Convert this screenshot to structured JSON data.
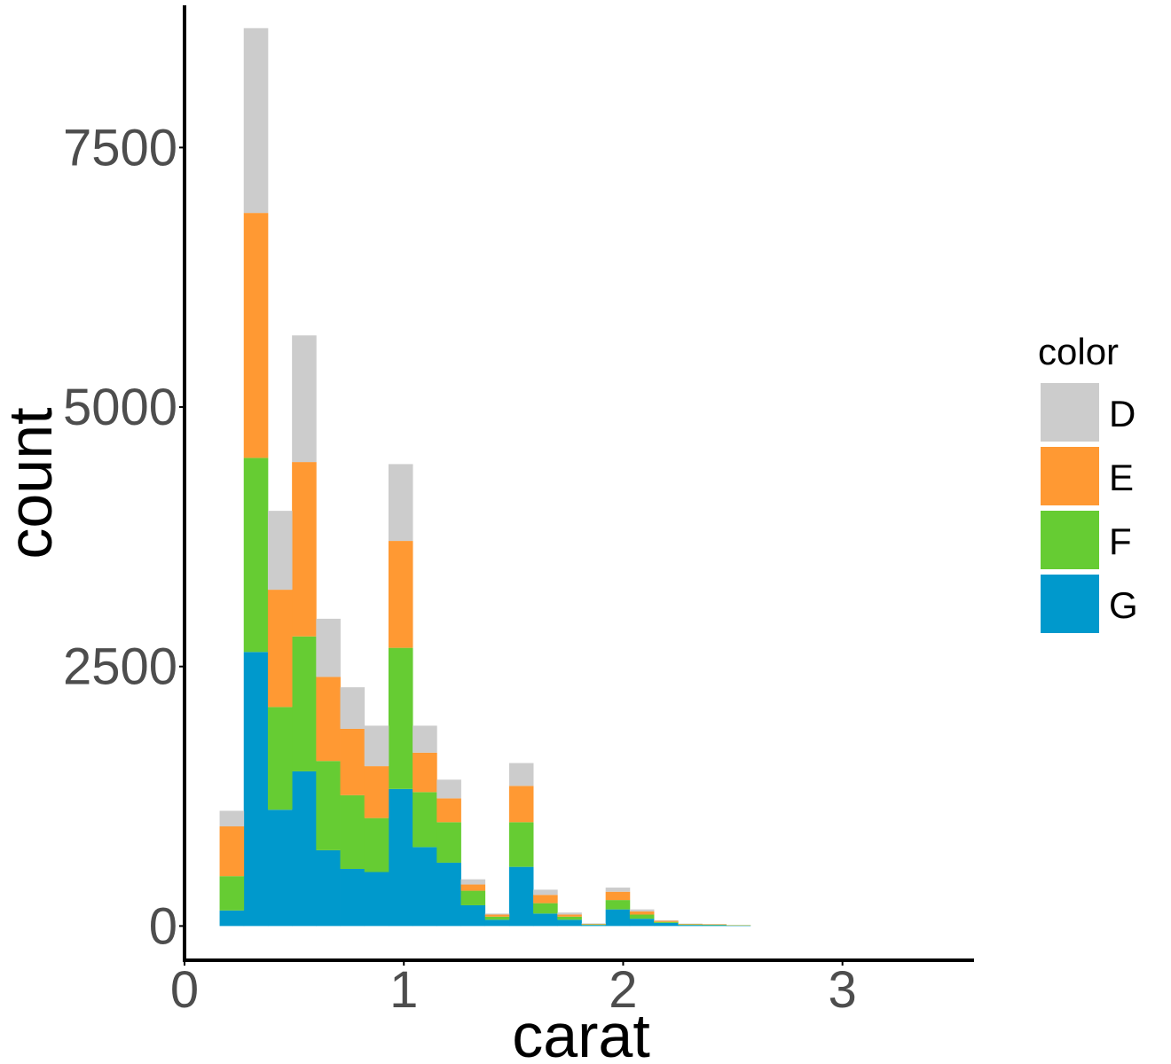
{
  "chart_data": {
    "type": "bar",
    "stacked": true,
    "histogram": true,
    "xlabel": "carat",
    "ylabel": "count",
    "xlim": [
      0,
      3.6
    ],
    "ylim": [
      -330,
      8870
    ],
    "x_ticks": [
      0,
      1,
      2,
      3
    ],
    "x_tick_labels": [
      "0",
      "1",
      "2",
      "3"
    ],
    "y_ticks": [
      0,
      2500,
      5000,
      7500
    ],
    "y_tick_labels": [
      "0",
      "2500",
      "5000",
      "7500"
    ],
    "bin_width": 0.11,
    "bin_starts": [
      0.16,
      0.27,
      0.38,
      0.49,
      0.6,
      0.71,
      0.82,
      0.93,
      1.04,
      1.15,
      1.26,
      1.37,
      1.48,
      1.59,
      1.7,
      1.81,
      1.92,
      2.03,
      2.14,
      2.25,
      2.36,
      2.47
    ],
    "legend": {
      "title": "color",
      "position": "right"
    },
    "grid": false,
    "series": [
      {
        "name": "G",
        "color": "#0099CC",
        "values": [
          150,
          2640,
          1120,
          1490,
          730,
          550,
          520,
          1320,
          760,
          610,
          200,
          60,
          570,
          120,
          60,
          10,
          160,
          70,
          30,
          10,
          8,
          4
        ]
      },
      {
        "name": "F",
        "color": "#66CC33",
        "values": [
          330,
          1870,
          990,
          1300,
          860,
          710,
          520,
          1360,
          530,
          390,
          140,
          30,
          430,
          100,
          30,
          5,
          90,
          40,
          10,
          5,
          5,
          3
        ]
      },
      {
        "name": "E",
        "color": "#FF9933",
        "values": [
          480,
          2360,
          1130,
          1680,
          810,
          640,
          500,
          1030,
          380,
          230,
          60,
          20,
          350,
          80,
          20,
          5,
          80,
          30,
          10,
          5,
          5,
          2
        ]
      },
      {
        "name": "D",
        "color": "#CCCCCC",
        "values": [
          150,
          1780,
          760,
          1220,
          560,
          400,
          390,
          740,
          260,
          180,
          50,
          10,
          220,
          50,
          20,
          5,
          40,
          20,
          5,
          3,
          2,
          1
        ]
      }
    ]
  }
}
